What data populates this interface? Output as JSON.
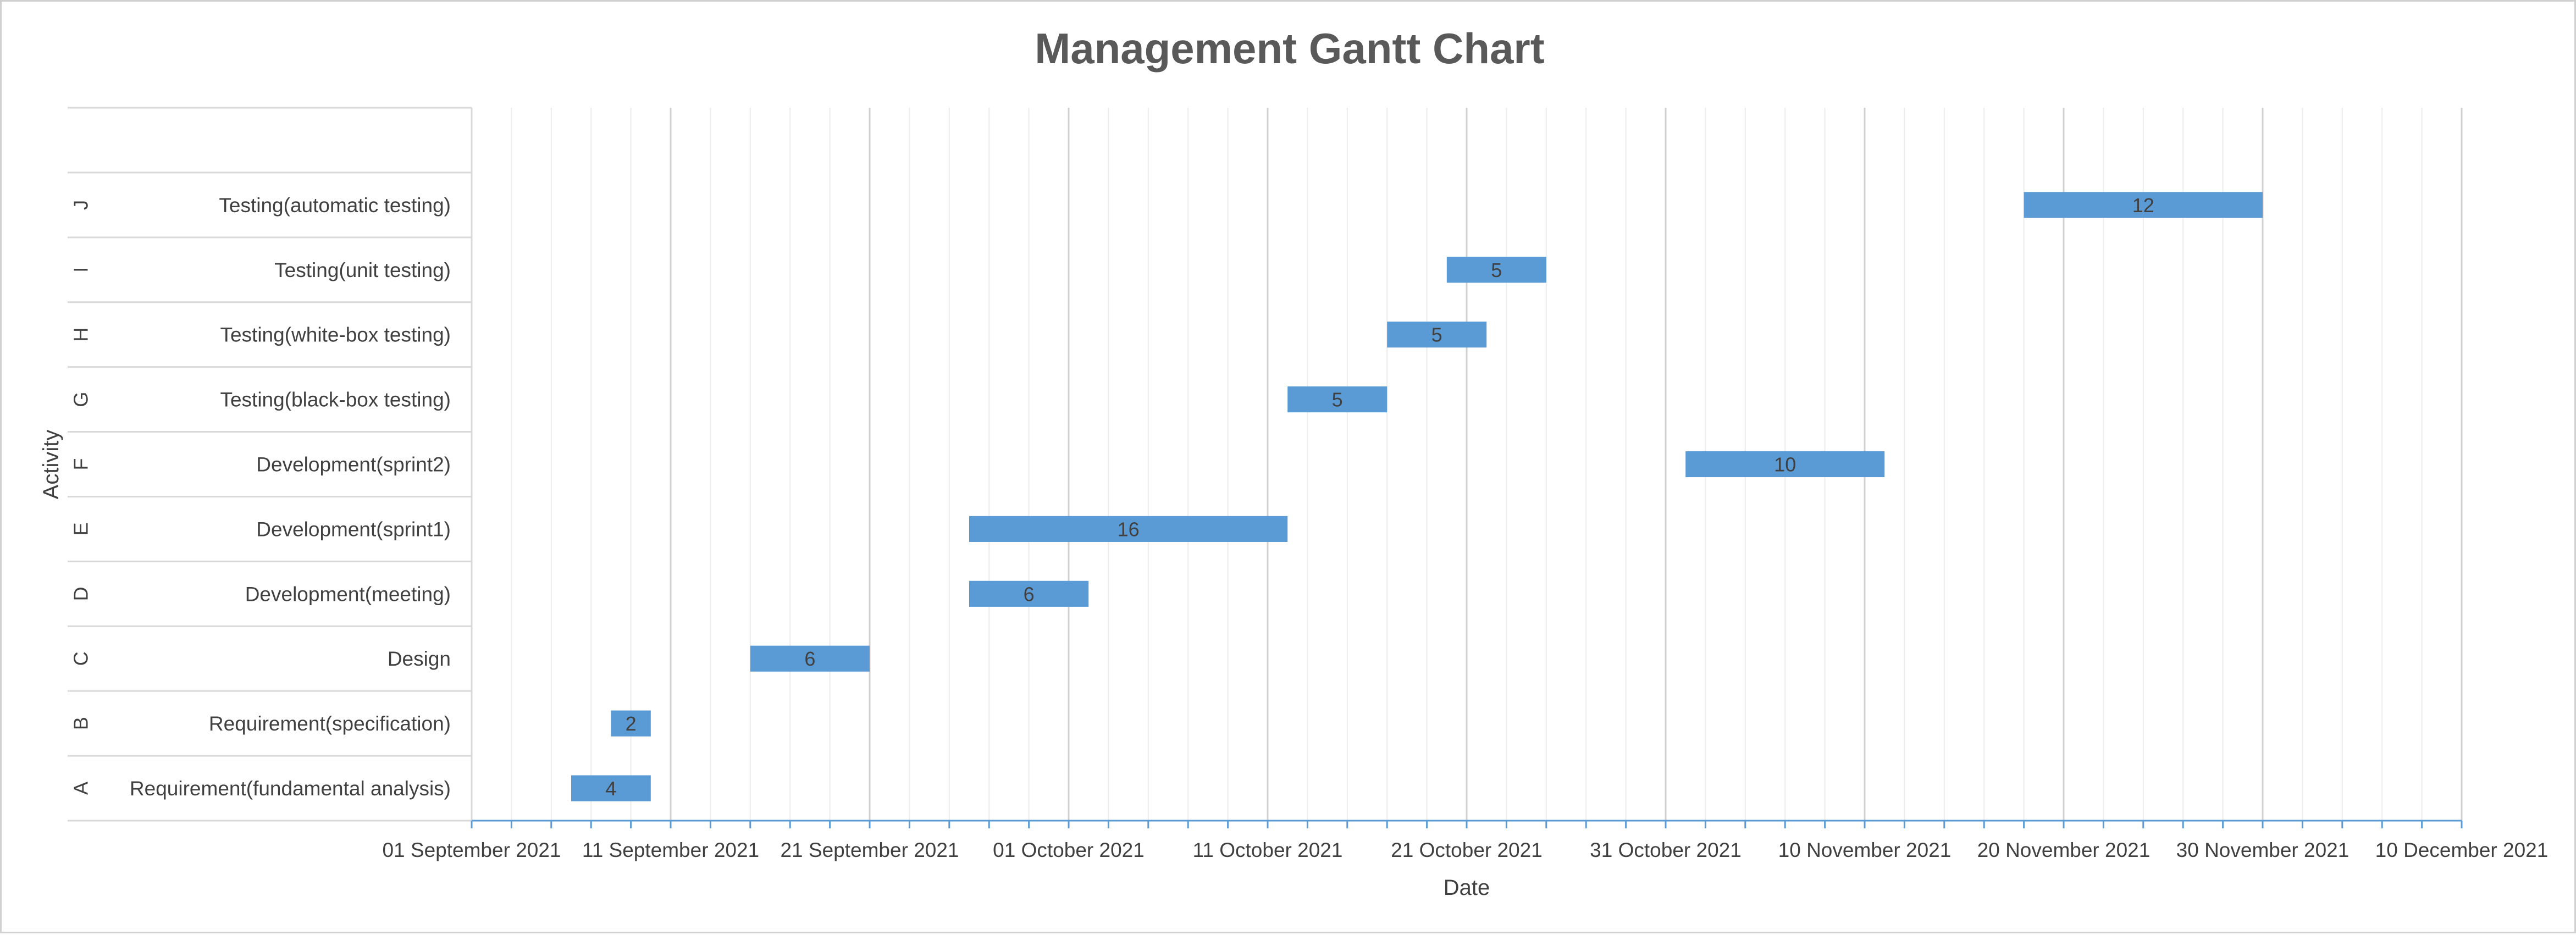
{
  "chart_data": {
    "type": "bar",
    "orientation": "horizontal",
    "title": "Management Gantt Chart",
    "xlabel": "Date",
    "ylabel": "Activity",
    "x_ticks": [
      "01 September 2021",
      "11 September 2021",
      "21 September 2021",
      "01 October 2021",
      "11 October 2021",
      "21 October 2021",
      "31 October 2021",
      "10 November 2021",
      "20 November 2021",
      "30 November 2021",
      "10 December 2021"
    ],
    "xlim": [
      "2021-09-01",
      "2021-12-10"
    ],
    "major_gridline_interval_days": 10,
    "minor_gridline_interval_days": 2,
    "grid": true,
    "legend": "none",
    "bar_color": "#5B9BD5",
    "categories": [
      {
        "code": "A",
        "name": "Requirement(fundamental analysis)",
        "start": "2021-09-06",
        "duration": 4
      },
      {
        "code": "B",
        "name": "Requirement(specification)",
        "start": "2021-09-08",
        "duration": 2
      },
      {
        "code": "C",
        "name": "Design",
        "start": "2021-09-15",
        "duration": 6
      },
      {
        "code": "D",
        "name": "Development(meeting)",
        "start": "2021-09-26",
        "duration": 6
      },
      {
        "code": "E",
        "name": "Development(sprint1)",
        "start": "2021-09-26",
        "duration": 16
      },
      {
        "code": "F",
        "name": "Development(sprint2)",
        "start": "2021-11-01",
        "duration": 10
      },
      {
        "code": "G",
        "name": "Testing(black-box testing)",
        "start": "2021-10-12",
        "duration": 5
      },
      {
        "code": "H",
        "name": "Testing(white-box testing)",
        "start": "2021-10-17",
        "duration": 5
      },
      {
        "code": "I",
        "name": "Testing(unit testing)",
        "start": "2021-10-20",
        "duration": 5
      },
      {
        "code": "J",
        "name": "Testing(automatic testing)",
        "start": "2021-11-18",
        "duration": 12
      }
    ]
  }
}
